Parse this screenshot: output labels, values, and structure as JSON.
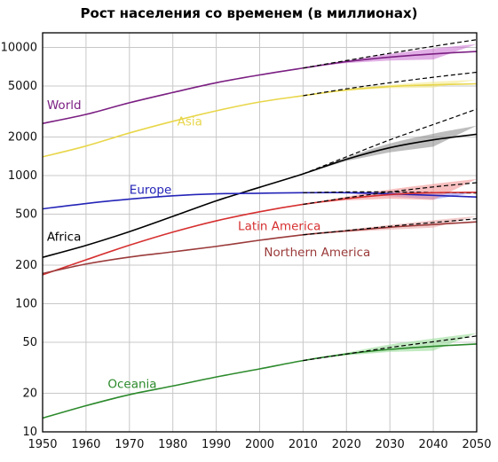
{
  "chart_data": {
    "type": "line",
    "title": "Рост населения со временем (в миллионах)",
    "xlabel": "",
    "ylabel": "",
    "y_scale": "log",
    "xlim": [
      1950,
      2050
    ],
    "ylim": [
      10,
      13000
    ],
    "grid": true,
    "x_ticks": [
      1950,
      1960,
      1970,
      1980,
      1990,
      2000,
      2010,
      2020,
      2030,
      2040,
      2050
    ],
    "y_ticks": [
      10,
      20,
      50,
      100,
      200,
      500,
      1000,
      2000,
      5000,
      10000
    ],
    "series": [
      {
        "name": "World",
        "color": "#7b1f82",
        "band_color": "#c86ecf",
        "x": [
          1950,
          1960,
          1970,
          1980,
          1990,
          2000,
          2010,
          2020,
          2030,
          2040,
          2050
        ],
        "values": [
          2550,
          3000,
          3700,
          4450,
          5300,
          6100,
          6900,
          7750,
          8400,
          8900,
          9300
        ],
        "projection_high": {
          "x": [
            2010,
            2020,
            2030,
            2040,
            2050
          ],
          "values": [
            6900,
            7900,
            9000,
            10200,
            11500
          ]
        },
        "band": {
          "x": [
            2010,
            2020,
            2030,
            2040,
            2050
          ],
          "low": [
            6900,
            7550,
            7900,
            8050,
            8100
          ],
          "high": [
            6900,
            7900,
            8900,
            9800,
            10600
          ]
        }
      },
      {
        "name": "Asia",
        "color": "#e8d64a",
        "band_color": "#f4e98a",
        "x": [
          1950,
          1960,
          1970,
          1980,
          1990,
          2000,
          2010,
          2020,
          2030,
          2040,
          2050
        ],
        "values": [
          1400,
          1700,
          2150,
          2650,
          3200,
          3750,
          4200,
          4650,
          4950,
          5100,
          5200
        ],
        "projection_high": {
          "x": [
            2010,
            2020,
            2030,
            2040,
            2050
          ],
          "values": [
            4200,
            4750,
            5300,
            5850,
            6400
          ]
        },
        "band": {
          "x": [
            2010,
            2020,
            2030,
            2040,
            2050
          ],
          "low": [
            4200,
            4600,
            4800,
            4850,
            4800
          ],
          "high": [
            4200,
            4750,
            5100,
            5400,
            5600
          ]
        }
      },
      {
        "name": "Africa",
        "color": "#000000",
        "band_color": "#888888",
        "x": [
          1950,
          1960,
          1970,
          1980,
          1990,
          2000,
          2010,
          2020,
          2030,
          2040,
          2050
        ],
        "values": [
          230,
          285,
          365,
          480,
          635,
          810,
          1030,
          1340,
          1650,
          1900,
          2100
        ],
        "projection_high": {
          "x": [
            2010,
            2020,
            2030,
            2040,
            2050
          ],
          "values": [
            1030,
            1400,
            1900,
            2500,
            3300
          ]
        },
        "band": {
          "x": [
            2010,
            2020,
            2030,
            2040,
            2050
          ],
          "low": [
            1030,
            1300,
            1520,
            1680,
            1780
          ],
          "high": [
            1030,
            1380,
            1780,
            2120,
            2450
          ]
        }
      },
      {
        "name": "Europe",
        "color": "#2424b8",
        "band_color": "#8c8cee",
        "x": [
          1950,
          1960,
          1970,
          1980,
          1990,
          2000,
          2010,
          2020,
          2030,
          2040,
          2050
        ],
        "values": [
          550,
          605,
          655,
          695,
          720,
          728,
          735,
          735,
          720,
          700,
          680
        ],
        "projection_high": {
          "x": [
            2010,
            2020,
            2030,
            2040,
            2050
          ],
          "values": [
            735,
            745,
            745,
            738,
            730
          ]
        },
        "band": {
          "x": [
            2010,
            2020,
            2030,
            2040,
            2050
          ],
          "low": [
            735,
            725,
            690,
            650,
            600
          ],
          "high": [
            735,
            745,
            750,
            745,
            740
          ]
        }
      },
      {
        "name": "Latin America",
        "color": "#d63030",
        "band_color": "#f08a8a",
        "x": [
          1950,
          1960,
          1970,
          1980,
          1990,
          2000,
          2010,
          2020,
          2030,
          2040,
          2050
        ],
        "values": [
          168,
          220,
          286,
          362,
          443,
          522,
          596,
          660,
          710,
          735,
          740
        ],
        "projection_high": {
          "x": [
            2010,
            2020,
            2030,
            2040,
            2050
          ],
          "values": [
            596,
            670,
            745,
            815,
            880
          ]
        },
        "band": {
          "x": [
            2010,
            2020,
            2030,
            2040,
            2050
          ],
          "low": [
            596,
            640,
            660,
            645,
            620
          ],
          "high": [
            596,
            685,
            780,
            860,
            940
          ]
        }
      },
      {
        "name": "Northern America",
        "color": "#9b3a3a",
        "band_color": "#e9a3a3",
        "x": [
          1950,
          1960,
          1970,
          1980,
          1990,
          2000,
          2010,
          2020,
          2030,
          2040,
          2050
        ],
        "values": [
          172,
          204,
          231,
          254,
          280,
          313,
          345,
          370,
          395,
          415,
          435
        ],
        "projection_high": {
          "x": [
            2010,
            2020,
            2030,
            2040,
            2050
          ],
          "values": [
            345,
            372,
            402,
            430,
            460
          ]
        },
        "band": {
          "x": [
            2010,
            2020,
            2030,
            2040,
            2050
          ],
          "low": [
            345,
            362,
            378,
            392,
            400
          ],
          "high": [
            345,
            378,
            412,
            448,
            482
          ]
        }
      },
      {
        "name": "Oceania",
        "color": "#2c8a2c",
        "band_color": "#8fd98f",
        "x": [
          1950,
          1960,
          1970,
          1980,
          1990,
          2000,
          2010,
          2020,
          2030,
          2040,
          2050
        ],
        "values": [
          12.8,
          16.0,
          19.5,
          22.8,
          26.8,
          31.0,
          36.0,
          40.5,
          44.0,
          46.5,
          48.5
        ],
        "projection_high": {
          "x": [
            2010,
            2020,
            2030,
            2040,
            2050
          ],
          "values": [
            36.0,
            40.5,
            45.5,
            50.5,
            56.0
          ]
        },
        "band": {
          "x": [
            2010,
            2020,
            2030,
            2040,
            2050
          ],
          "low": [
            36.0,
            39.5,
            42.0,
            43.0,
            43.5
          ],
          "high": [
            36.0,
            41.5,
            48.0,
            53.5,
            59.0
          ]
        }
      }
    ],
    "annotations": [
      {
        "text": "World",
        "x": 1951,
        "y": 3300,
        "color": "#7b1f82"
      },
      {
        "text": "Asia",
        "x": 1981,
        "y": 2450,
        "color": "#e8d64a"
      },
      {
        "text": "Europe",
        "x": 1970,
        "y": 720,
        "color": "#2424b8"
      },
      {
        "text": "Africa",
        "x": 1951,
        "y": 310,
        "color": "#000000"
      },
      {
        "text": "Latin America",
        "x": 1995,
        "y": 375,
        "color": "#d63030"
      },
      {
        "text": "Northern America",
        "x": 2001,
        "y": 235,
        "color": "#9b3a3a"
      },
      {
        "text": "Oceania",
        "x": 1965,
        "y": 22,
        "color": "#2c8a2c"
      }
    ]
  }
}
